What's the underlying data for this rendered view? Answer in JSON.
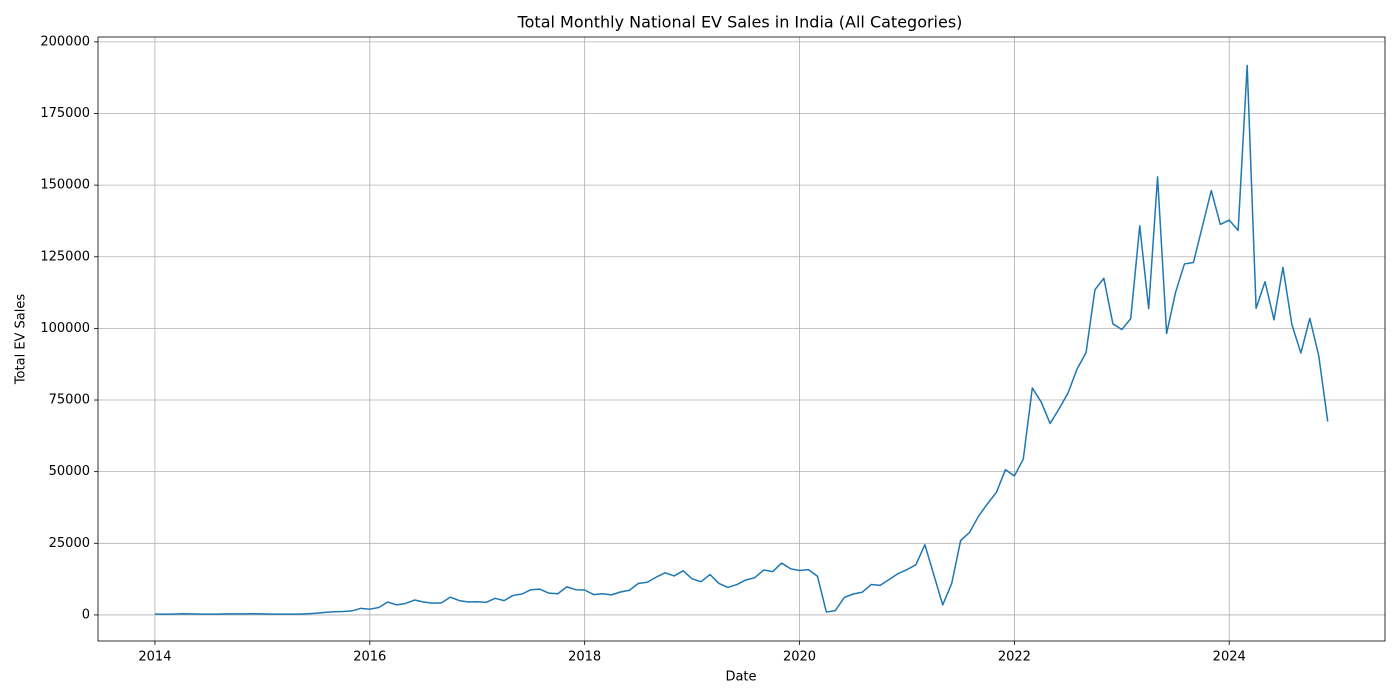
{
  "chart_data": {
    "type": "line",
    "title": "Total Monthly National EV Sales in India (All Categories)",
    "xlabel": "Date",
    "ylabel": "Total EV Sales",
    "x": [
      2014,
      2014.083,
      2014.167,
      2014.25,
      2014.333,
      2014.417,
      2014.5,
      2014.583,
      2014.667,
      2014.75,
      2014.833,
      2014.917,
      2015,
      2015.083,
      2015.167,
      2015.25,
      2015.333,
      2015.417,
      2015.5,
      2015.583,
      2015.667,
      2015.75,
      2015.833,
      2015.917,
      2016,
      2016.083,
      2016.167,
      2016.25,
      2016.333,
      2016.417,
      2016.5,
      2016.583,
      2016.667,
      2016.75,
      2016.833,
      2016.917,
      2017,
      2017.083,
      2017.167,
      2017.25,
      2017.333,
      2017.417,
      2017.5,
      2017.583,
      2017.667,
      2017.75,
      2017.833,
      2017.917,
      2018,
      2018.083,
      2018.167,
      2018.25,
      2018.333,
      2018.417,
      2018.5,
      2018.583,
      2018.667,
      2018.75,
      2018.833,
      2018.917,
      2019,
      2019.083,
      2019.167,
      2019.25,
      2019.333,
      2019.417,
      2019.5,
      2019.583,
      2019.667,
      2019.75,
      2019.833,
      2019.917,
      2020,
      2020.083,
      2020.167,
      2020.25,
      2020.333,
      2020.417,
      2020.5,
      2020.583,
      2020.667,
      2020.75,
      2020.833,
      2020.917,
      2021,
      2021.083,
      2021.167,
      2021.25,
      2021.333,
      2021.417,
      2021.5,
      2021.583,
      2021.667,
      2021.75,
      2021.833,
      2021.917,
      2022,
      2022.083,
      2022.167,
      2022.25,
      2022.333,
      2022.417,
      2022.5,
      2022.583,
      2022.667,
      2022.75,
      2022.833,
      2022.917,
      2023,
      2023.083,
      2023.167,
      2023.25,
      2023.333,
      2023.417,
      2023.5,
      2023.583,
      2023.667,
      2023.75,
      2023.833,
      2023.917,
      2024,
      2024.083,
      2024.167,
      2024.25,
      2024.333,
      2024.417,
      2024.5,
      2024.583,
      2024.667,
      2024.75,
      2024.833,
      2024.917
    ],
    "values": [
      300,
      250,
      300,
      400,
      350,
      300,
      300,
      300,
      350,
      350,
      350,
      400,
      350,
      300,
      300,
      300,
      300,
      400,
      600,
      900,
      1100,
      1200,
      1400,
      2300,
      2000,
      2600,
      4500,
      3500,
      4000,
      5200,
      4500,
      4100,
      4200,
      6200,
      5000,
      4500,
      4600,
      4400,
      5800,
      5000,
      6800,
      7300,
      8800,
      9000,
      7600,
      7400,
      9800,
      8800,
      8700,
      7100,
      7400,
      7000,
      8000,
      8600,
      11000,
      11400,
      13200,
      14700,
      13600,
      15400,
      12600,
      11600,
      14100,
      11000,
      9600,
      10600,
      12200,
      13000,
      15700,
      15100,
      18100,
      16100,
      15500,
      15800,
      13500,
      1000,
      1500,
      6100,
      7300,
      7900,
      10600,
      10300,
      12300,
      14400,
      15800,
      17500,
      24500,
      14000,
      3500,
      11000,
      26000,
      28800,
      34500,
      38800,
      42800,
      50700,
      48500,
      54400,
      79200,
      74300,
      66800,
      72000,
      77500,
      85800,
      91500,
      113500,
      117500,
      101600,
      99600,
      103400,
      135800,
      106900,
      152900,
      98200,
      112500,
      122500,
      123000,
      135600,
      148100,
      136300,
      137800,
      134200,
      191800,
      107000,
      116300,
      103000,
      121300,
      101400,
      91400,
      103500,
      90500,
      67500
    ],
    "color": "#1f77b4",
    "xlim": [
      2013.47,
      2025.45
    ],
    "xticks": [
      2014,
      2016,
      2018,
      2020,
      2022,
      2024
    ],
    "ylim": [
      -9100,
      201700
    ],
    "yticks": [
      0,
      25000,
      50000,
      75000,
      100000,
      125000,
      150000,
      175000,
      200000
    ],
    "grid": true
  }
}
